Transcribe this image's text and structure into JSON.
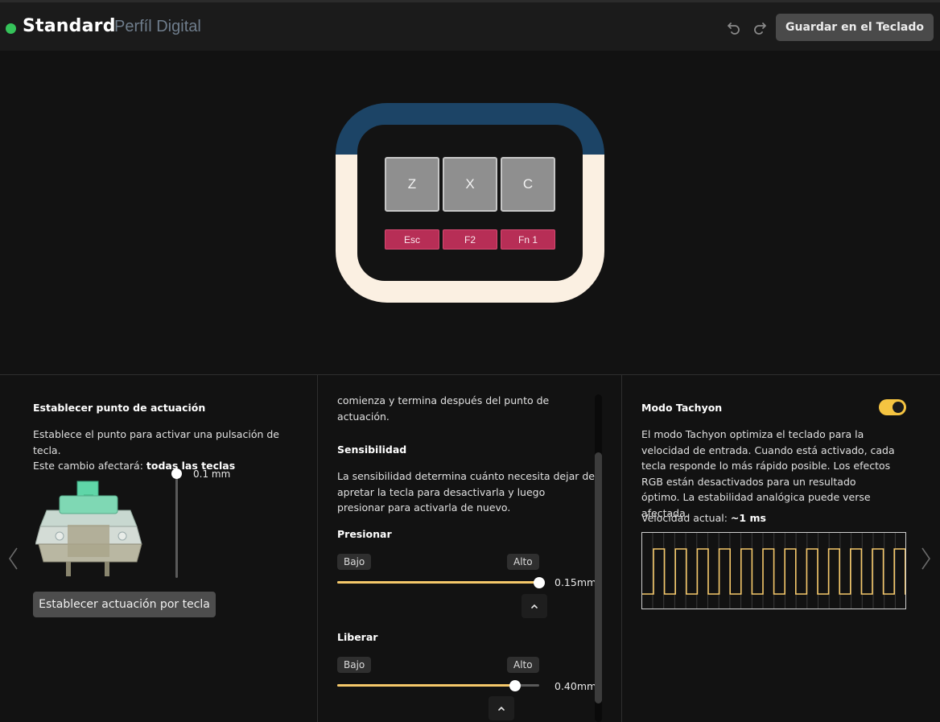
{
  "header": {
    "profile_name": "Standard",
    "profile_subtitle": "Perfíl Digital",
    "save_button": "Guardar en el Teclado",
    "status_color": "#35c35a"
  },
  "keyboard": {
    "keys": [
      "Z",
      "X",
      "C"
    ],
    "function_keys": [
      "Esc",
      "F2",
      "Fn 1"
    ],
    "top_color": "#1c4466",
    "body_color": "#fbf0e2",
    "key_color": "#8f8f8f",
    "function_key_color": "#b72e56"
  },
  "actuation": {
    "title": "Establecer punto de actuación",
    "description": "Establece el punto para activar una pulsación de tecla.",
    "affects_prefix": "Este cambio afectará: ",
    "affects_value": "todas las teclas",
    "value": "0.1 mm",
    "per_key_button": "Establecer actuación por tecla"
  },
  "rapid_trigger": {
    "intro": "comienza y termina después del punto de actuación.",
    "sensitivity_title": "Sensibilidad",
    "sensitivity_text": "La sensibilidad determina cuánto necesita dejar de apretar la tecla para desactivarla y luego presionar para activarla de nuevo.",
    "press": {
      "label": "Presionar",
      "low": "Bajo",
      "high": "Alto",
      "value": "0.15mm",
      "fill_fraction": 1.0
    },
    "release": {
      "label": "Liberar",
      "low": "Bajo",
      "high": "Alto",
      "value": "0.40mm",
      "fill_fraction": 0.88
    },
    "accent_color": "#f5c86a"
  },
  "tachyon": {
    "title": "Modo Tachyon",
    "enabled": true,
    "description": "El modo Tachyon optimiza el teclado para la velocidad de entrada. Cuando está activado, cada tecla responde lo más rápido posible. Los efectos RGB están desactivados para un resultado óptimo. La estabilidad analógica puede verse afectada.",
    "speed_label": "Velocidad actual: ",
    "speed_value": "~1 ms",
    "toggle_color": "#f5c441"
  },
  "icons": [
    "undo-icon",
    "redo-icon",
    "chevron-up-icon",
    "chevron-left-icon",
    "chevron-right-icon",
    "key-switch-icon"
  ]
}
